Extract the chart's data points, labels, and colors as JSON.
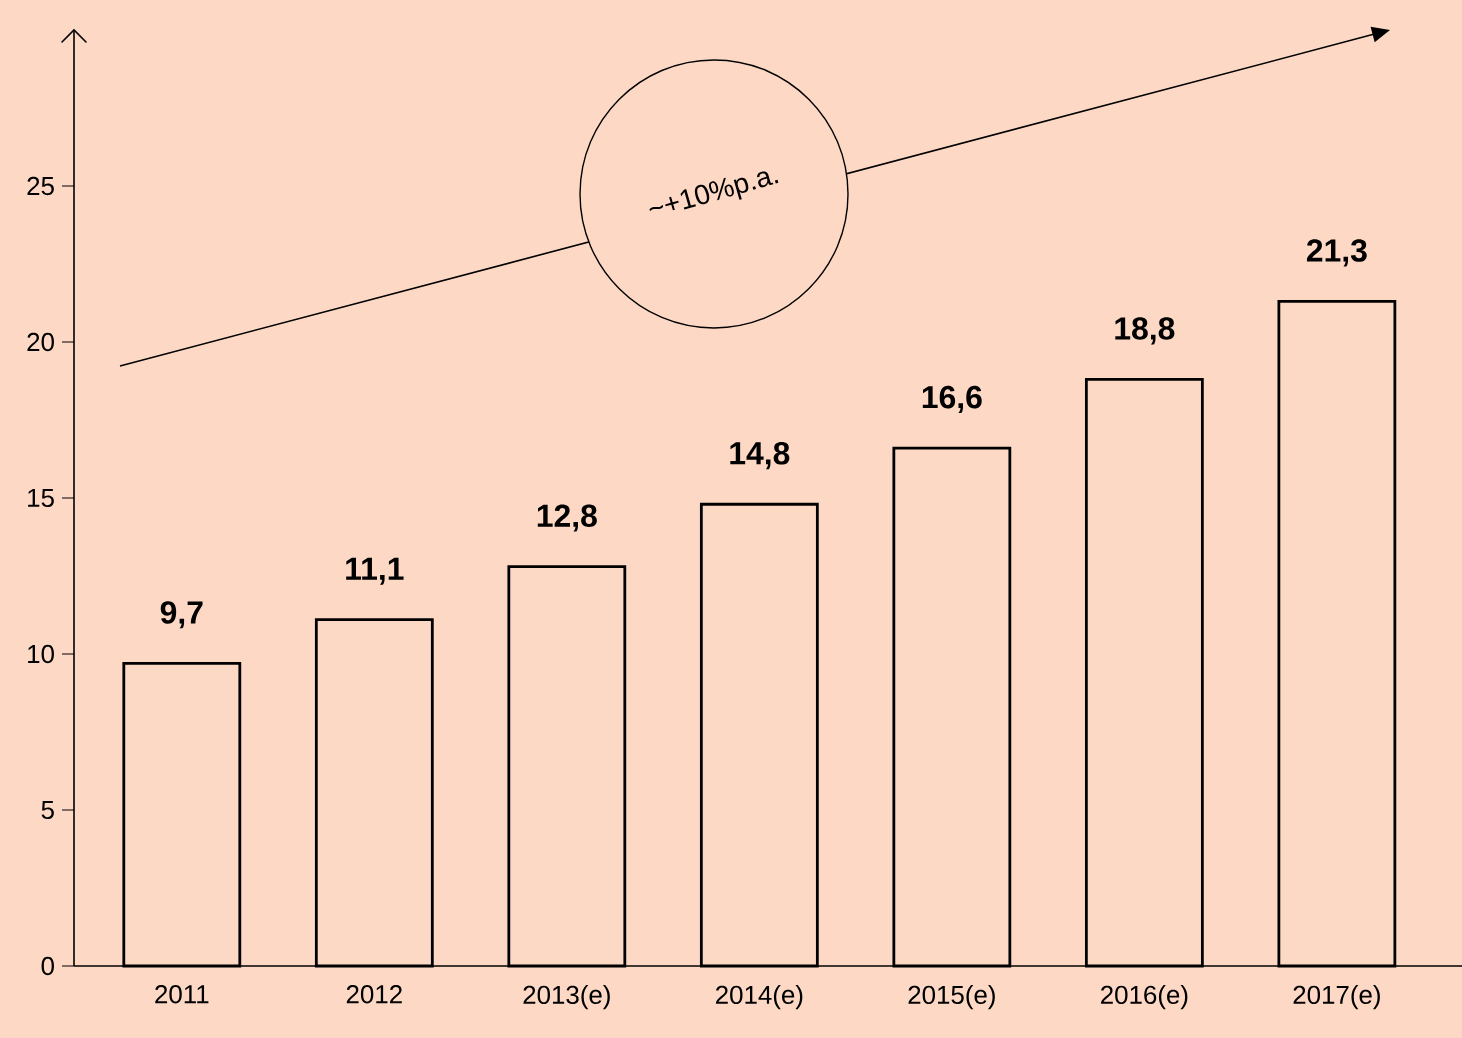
{
  "chart_data": {
    "type": "bar",
    "categories": [
      "2011",
      "2012",
      "2013(e)",
      "2014(e)",
      "2015(e)",
      "2016(e)",
      "2017(e)"
    ],
    "values": [
      9.7,
      11.1,
      12.8,
      14.8,
      16.6,
      18.8,
      21.3
    ],
    "value_labels": [
      "9,7",
      "11,1",
      "12,8",
      "14,8",
      "16,6",
      "18,8",
      "21,3"
    ],
    "color": "#fcd9c4",
    "ylim": [
      0,
      30
    ],
    "yticks": [
      0,
      5,
      10,
      15,
      20,
      25
    ],
    "grid": false,
    "annotations": [
      "~+10%p.a."
    ]
  }
}
